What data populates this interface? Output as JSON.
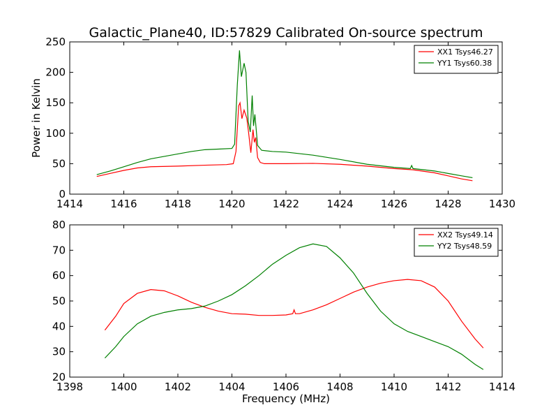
{
  "figure": {
    "title": "Galactic_Plane40, ID:57829 Calibrated On-source spectrum"
  },
  "chart_data": [
    {
      "type": "line",
      "ylabel": "Power in Kelvin",
      "xlabel": "",
      "xlim": [
        1414,
        1430
      ],
      "ylim": [
        0,
        250
      ],
      "xticks": [
        "1414",
        "1416",
        "1418",
        "1420",
        "1422",
        "1424",
        "1426",
        "1428",
        "1430"
      ],
      "yticks": [
        "0",
        "50",
        "100",
        "150",
        "200",
        "250"
      ],
      "grid": false,
      "legend": "top-right",
      "series": [
        {
          "name": "XX1 Tsys46.27",
          "color": "#ff0000",
          "points": [
            [
              1415.0,
              29
            ],
            [
              1415.5,
              34
            ],
            [
              1416.0,
              39
            ],
            [
              1416.5,
              43
            ],
            [
              1417.0,
              45
            ],
            [
              1418.0,
              46
            ],
            [
              1419.0,
              47.5
            ],
            [
              1419.8,
              48.5
            ],
            [
              1420.05,
              50
            ],
            [
              1420.15,
              70
            ],
            [
              1420.25,
              145
            ],
            [
              1420.3,
              150
            ],
            [
              1420.37,
              124
            ],
            [
              1420.45,
              138
            ],
            [
              1420.55,
              125
            ],
            [
              1420.62,
              100
            ],
            [
              1420.7,
              68
            ],
            [
              1420.78,
              106
            ],
            [
              1420.83,
              85
            ],
            [
              1420.88,
              93
            ],
            [
              1420.95,
              60
            ],
            [
              1421.05,
              52
            ],
            [
              1421.2,
              50
            ],
            [
              1422.0,
              50
            ],
            [
              1423.0,
              50.5
            ],
            [
              1424.0,
              49
            ],
            [
              1425.0,
              46
            ],
            [
              1426.0,
              42
            ],
            [
              1426.7,
              40
            ],
            [
              1427.5,
              35
            ],
            [
              1428.0,
              30
            ],
            [
              1428.5,
              25
            ],
            [
              1428.9,
              22
            ]
          ]
        },
        {
          "name": "YY1 Tsys60.38",
          "color": "#008000",
          "points": [
            [
              1415.0,
              32
            ],
            [
              1415.5,
              38
            ],
            [
              1416.0,
              45
            ],
            [
              1416.5,
              52
            ],
            [
              1417.0,
              58
            ],
            [
              1417.5,
              62
            ],
            [
              1418.0,
              66
            ],
            [
              1418.5,
              70
            ],
            [
              1419.0,
              73
            ],
            [
              1419.5,
              74
            ],
            [
              1420.0,
              75
            ],
            [
              1420.1,
              82
            ],
            [
              1420.2,
              180
            ],
            [
              1420.28,
              236
            ],
            [
              1420.35,
              193
            ],
            [
              1420.45,
              215
            ],
            [
              1420.52,
              200
            ],
            [
              1420.6,
              120
            ],
            [
              1420.68,
              102
            ],
            [
              1420.75,
              162
            ],
            [
              1420.8,
              112
            ],
            [
              1420.85,
              131
            ],
            [
              1420.95,
              80
            ],
            [
              1421.1,
              72
            ],
            [
              1421.5,
              70
            ],
            [
              1422.0,
              69
            ],
            [
              1423.0,
              64
            ],
            [
              1424.0,
              57
            ],
            [
              1425.0,
              49
            ],
            [
              1426.0,
              44
            ],
            [
              1426.6,
              42
            ],
            [
              1426.65,
              47
            ],
            [
              1426.7,
              42
            ],
            [
              1427.5,
              38
            ],
            [
              1428.0,
              34
            ],
            [
              1428.5,
              30
            ],
            [
              1428.9,
              27
            ]
          ]
        }
      ]
    },
    {
      "type": "line",
      "ylabel": "",
      "xlabel": "Frequency (MHz)",
      "xlim": [
        1398,
        1414
      ],
      "ylim": [
        20,
        80
      ],
      "xticks": [
        "1398",
        "1400",
        "1402",
        "1404",
        "1406",
        "1408",
        "1410",
        "1412",
        "1414"
      ],
      "yticks": [
        "20",
        "30",
        "40",
        "50",
        "60",
        "70",
        "80"
      ],
      "grid": false,
      "legend": "top-right",
      "series": [
        {
          "name": "XX2 Tsys49.14",
          "color": "#ff0000",
          "points": [
            [
              1399.3,
              38.5
            ],
            [
              1399.7,
              44
            ],
            [
              1400.0,
              49
            ],
            [
              1400.5,
              53
            ],
            [
              1401.0,
              54.5
            ],
            [
              1401.5,
              54
            ],
            [
              1402.0,
              52
            ],
            [
              1402.5,
              49.5
            ],
            [
              1403.0,
              47.5
            ],
            [
              1403.5,
              46
            ],
            [
              1404.0,
              45
            ],
            [
              1404.5,
              44.8
            ],
            [
              1405.0,
              44.3
            ],
            [
              1405.5,
              44.3
            ],
            [
              1406.0,
              44.5
            ],
            [
              1406.25,
              45
            ],
            [
              1406.3,
              46.5
            ],
            [
              1406.35,
              45
            ],
            [
              1406.5,
              45
            ],
            [
              1407.0,
              46.5
            ],
            [
              1407.5,
              48.5
            ],
            [
              1408.0,
              51
            ],
            [
              1408.5,
              53.5
            ],
            [
              1409.0,
              55.5
            ],
            [
              1409.5,
              57
            ],
            [
              1410.0,
              58
            ],
            [
              1410.5,
              58.5
            ],
            [
              1411.0,
              58
            ],
            [
              1411.5,
              55.5
            ],
            [
              1412.0,
              50
            ],
            [
              1412.5,
              42
            ],
            [
              1413.0,
              35
            ],
            [
              1413.3,
              31.5
            ]
          ]
        },
        {
          "name": "YY2 Tsys48.59",
          "color": "#008000",
          "points": [
            [
              1399.3,
              27.5
            ],
            [
              1399.7,
              32
            ],
            [
              1400.0,
              36
            ],
            [
              1400.5,
              41
            ],
            [
              1401.0,
              44
            ],
            [
              1401.5,
              45.5
            ],
            [
              1402.0,
              46.5
            ],
            [
              1402.5,
              47
            ],
            [
              1403.0,
              48
            ],
            [
              1403.5,
              50
            ],
            [
              1404.0,
              52.5
            ],
            [
              1404.5,
              56
            ],
            [
              1405.0,
              60
            ],
            [
              1405.5,
              64.5
            ],
            [
              1406.0,
              68
            ],
            [
              1406.5,
              71
            ],
            [
              1407.0,
              72.5
            ],
            [
              1407.5,
              71.5
            ],
            [
              1408.0,
              67
            ],
            [
              1408.5,
              61
            ],
            [
              1409.0,
              53
            ],
            [
              1409.5,
              46
            ],
            [
              1410.0,
              41
            ],
            [
              1410.5,
              38
            ],
            [
              1411.0,
              36
            ],
            [
              1411.5,
              34
            ],
            [
              1412.0,
              32
            ],
            [
              1412.5,
              29
            ],
            [
              1413.0,
              25
            ],
            [
              1413.3,
              23
            ]
          ]
        }
      ]
    }
  ]
}
